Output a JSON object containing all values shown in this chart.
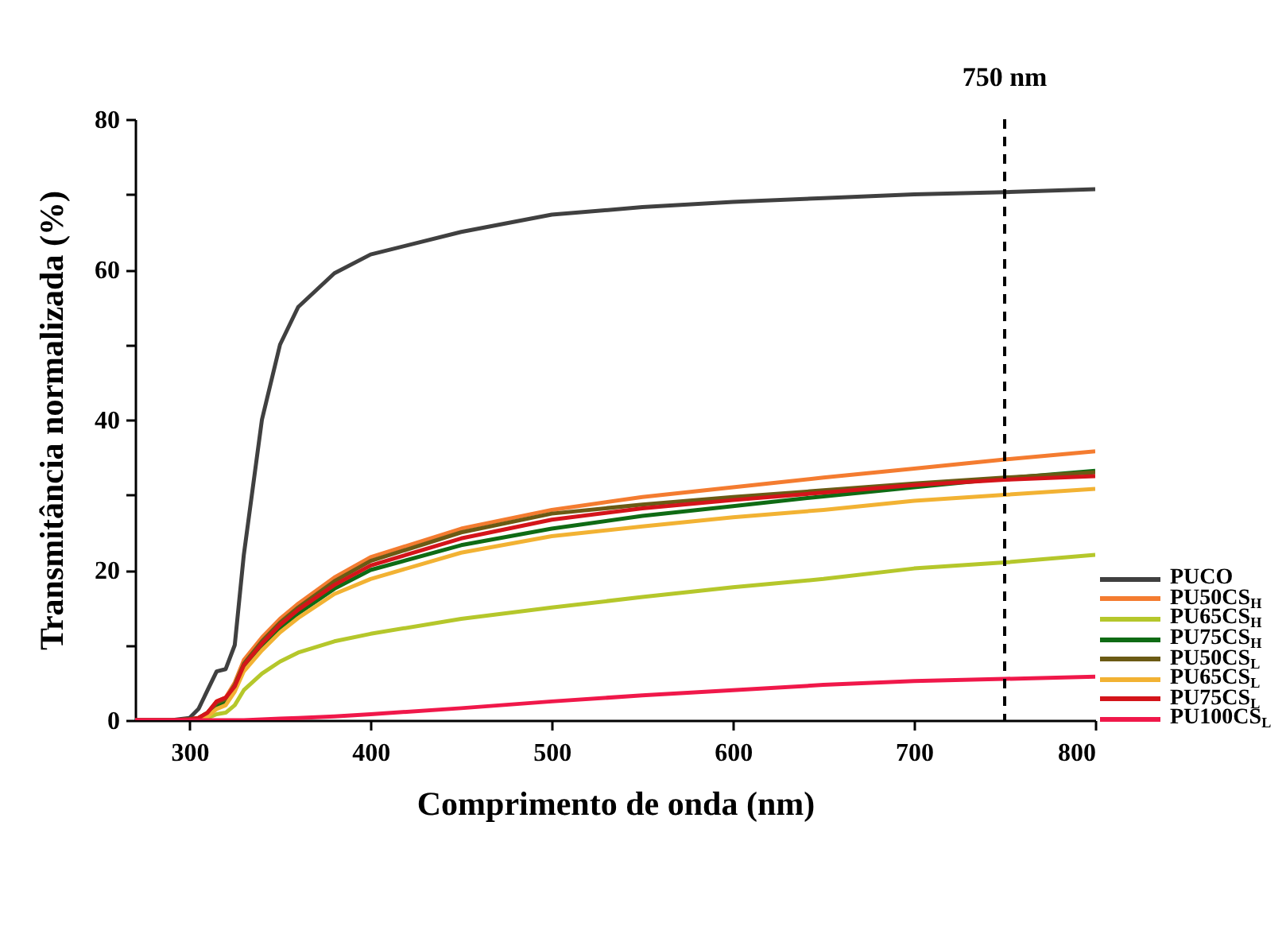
{
  "chart_data": {
    "type": "line",
    "xlabel": "Comprimento de onda (nm)",
    "ylabel": "Transmitância normalizada (%)",
    "x": [
      270,
      290,
      300,
      305,
      310,
      315,
      320,
      325,
      330,
      340,
      350,
      360,
      380,
      400,
      450,
      500,
      550,
      600,
      650,
      700,
      750,
      800
    ],
    "series": [
      {
        "name": "PUCO",
        "color": "#404040",
        "values": [
          0,
          0,
          0.3,
          1.5,
          4,
          6.5,
          6.8,
          10,
          22,
          40,
          50,
          55,
          59.5,
          62,
          65,
          67.3,
          68.3,
          69,
          69.5,
          70,
          70.3,
          70.7
        ]
      },
      {
        "name": "PU50CS$_{H}$",
        "color": "#f47c30",
        "values": [
          0,
          0,
          0.1,
          0.3,
          1,
          2.5,
          3,
          5,
          8,
          11,
          13.5,
          15.5,
          19,
          21.7,
          25.5,
          28,
          29.7,
          31,
          32.3,
          33.5,
          34.7,
          35.8
        ]
      },
      {
        "name": "PU65CS$_{H}$",
        "color": "#b5c72b",
        "values": [
          null,
          null,
          null,
          0,
          0.3,
          0.8,
          1,
          2,
          4,
          6.2,
          7.8,
          9,
          10.5,
          11.5,
          13.5,
          15,
          16.4,
          17.7,
          18.8,
          20.2,
          21,
          22
        ]
      },
      {
        "name": "PU75CS$_{H}$",
        "color": "#0f6b14",
        "values": [
          null,
          null,
          null,
          0.2,
          0.8,
          2,
          2.5,
          4.3,
          7,
          9.8,
          12.3,
          14.2,
          17.5,
          20,
          23.3,
          25.5,
          27.2,
          28.5,
          29.8,
          31,
          32.2,
          33.2
        ]
      },
      {
        "name": "PU50CS$_{L}$",
        "color": "#6b5a14",
        "values": [
          0,
          0,
          0.1,
          0.3,
          1,
          2.3,
          2.8,
          4.7,
          7.5,
          10.5,
          13,
          15,
          18.5,
          21.2,
          25,
          27.5,
          28.7,
          29.7,
          30.6,
          31.5,
          32.3,
          33
        ]
      },
      {
        "name": "PU65CS$_{L}$",
        "color": "#f2b233",
        "values": [
          null,
          null,
          0,
          0.1,
          0.5,
          1.5,
          2,
          3.8,
          6.5,
          9.3,
          11.7,
          13.6,
          16.8,
          18.8,
          22.3,
          24.5,
          25.8,
          27,
          28,
          29.2,
          30,
          30.8
        ]
      },
      {
        "name": "PU75CS$_{L}$",
        "color": "#d4141a",
        "values": [
          0,
          0,
          0.1,
          0.3,
          1,
          2.5,
          3,
          4.5,
          7.3,
          10.2,
          12.7,
          14.7,
          18,
          20.6,
          24.2,
          26.7,
          28.2,
          29.3,
          30.3,
          31.3,
          32,
          32.5
        ]
      },
      {
        "name": "PU100CS$_{L}$",
        "color": "#f0184a",
        "values": [
          0,
          0,
          0,
          0,
          0,
          0,
          0,
          0,
          0,
          0.1,
          0.2,
          0.3,
          0.5,
          0.8,
          1.6,
          2.5,
          3.3,
          4,
          4.7,
          5.2,
          5.5,
          5.8
        ]
      }
    ],
    "xlim": [
      270,
      800
    ],
    "xticks": [
      300,
      400,
      500,
      600,
      700,
      800
    ],
    "ylim": [
      0,
      80
    ],
    "yticks": [
      0,
      {
        "value": 10,
        "label": null
      },
      20,
      {
        "value": 30,
        "label": null
      },
      40,
      {
        "value": 50,
        "label": null
      },
      60,
      {
        "value": 70,
        "label": null
      },
      80
    ],
    "ref_lines": [
      {
        "axis": "x",
        "value": 750,
        "label": "750 nm",
        "color": "#000000",
        "line_style": "dashed"
      }
    ],
    "legend": "right",
    "grid": false
  }
}
